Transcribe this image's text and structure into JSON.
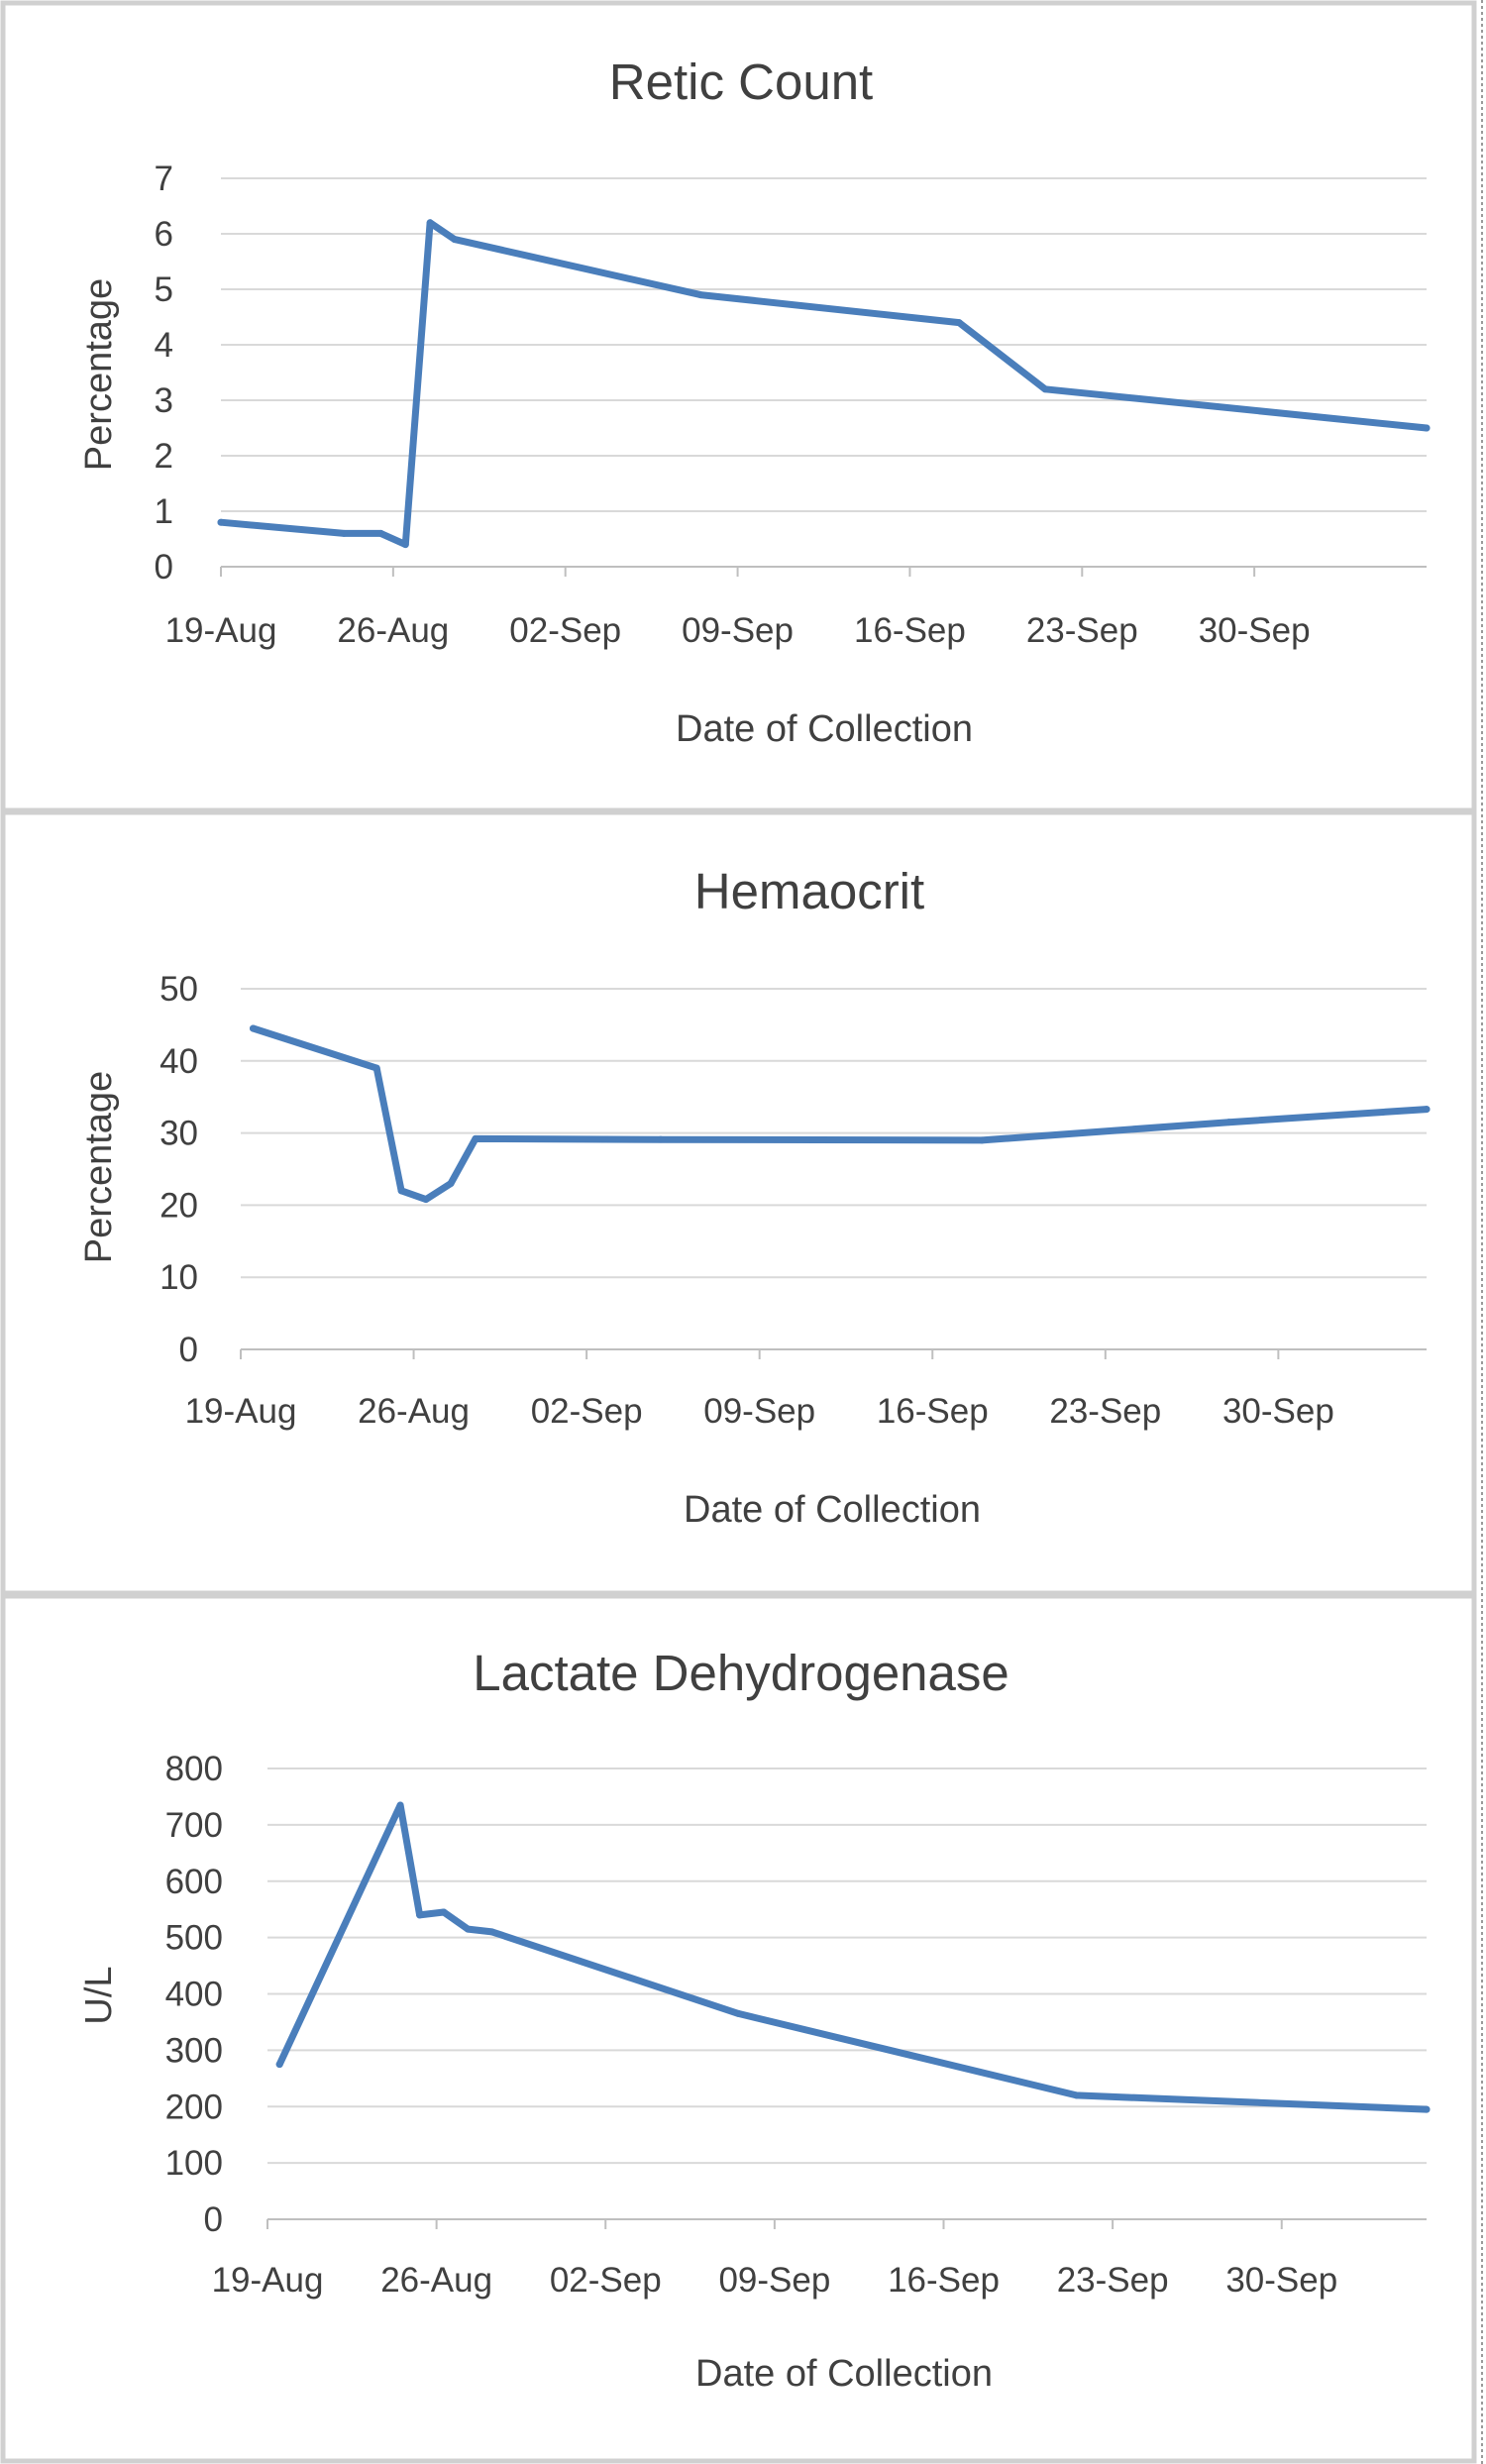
{
  "colors": {
    "series": "#4a7ebb"
  },
  "chart_data": [
    {
      "type": "line",
      "title": "Retic Count",
      "xlabel": "Date of Collection",
      "ylabel": "Percentage",
      "x_ticks": [
        "19-Aug",
        "26-Aug",
        "02-Sep",
        "09-Sep",
        "16-Sep",
        "23-Sep",
        "30-Sep"
      ],
      "y_ticks": [
        "0",
        "1",
        "2",
        "3",
        "4",
        "5",
        "6",
        "7"
      ],
      "ylim": [
        0,
        7
      ],
      "xlim_days_from_19_aug": [
        0,
        49
      ],
      "grid": true,
      "series": [
        {
          "name": "Retic Count",
          "x_days_from_19_aug": [
            0,
            5,
            6.5,
            7.5,
            8.5,
            9.5,
            19.5,
            30,
            33.5,
            49
          ],
          "x": [
            "19-Aug",
            "24-Aug",
            "25-Aug",
            "26-Aug",
            "27-Aug",
            "28-Aug",
            "07-Sep",
            "17-Sep",
            "21-Sep",
            "06-Oct"
          ],
          "values": [
            0.8,
            0.6,
            0.6,
            0.4,
            6.2,
            5.9,
            4.9,
            4.4,
            3.2,
            2.5
          ]
        }
      ]
    },
    {
      "type": "line",
      "title": "Hemaocrit",
      "xlabel": "Date of Collection",
      "ylabel": "Percentage",
      "x_ticks": [
        "19-Aug",
        "26-Aug",
        "02-Sep",
        "09-Sep",
        "16-Sep",
        "23-Sep",
        "30-Sep"
      ],
      "y_ticks": [
        "0",
        "10",
        "20",
        "30",
        "40",
        "50"
      ],
      "ylim": [
        0,
        50
      ],
      "xlim_days_from_19_aug": [
        0,
        48
      ],
      "grid": true,
      "series": [
        {
          "name": "Hemaocrit",
          "x_days_from_19_aug": [
            0.5,
            5.5,
            6.5,
            7.5,
            8.5,
            9.5,
            17,
            30,
            40,
            48
          ],
          "x": [
            "19-Aug",
            "24-Aug",
            "25-Aug",
            "26-Aug",
            "27-Aug",
            "28-Aug",
            "04-Sep",
            "17-Sep",
            "27-Sep",
            "05-Oct"
          ],
          "values": [
            44.5,
            39,
            22,
            20.8,
            23,
            29.2,
            29.1,
            29,
            31.5,
            33.3
          ]
        }
      ]
    },
    {
      "type": "line",
      "title": "Lactate Dehydrogenase",
      "xlabel": "Date of Collection",
      "ylabel": "U/L",
      "x_ticks": [
        "19-Aug",
        "26-Aug",
        "02-Sep",
        "09-Sep",
        "16-Sep",
        "23-Sep",
        "30-Sep"
      ],
      "y_ticks": [
        "0",
        "100",
        "200",
        "300",
        "400",
        "500",
        "600",
        "700",
        "800"
      ],
      "ylim": [
        0,
        800
      ],
      "xlim_days_from_19_aug": [
        0,
        48
      ],
      "grid": true,
      "series": [
        {
          "name": "Lactate Dehydrogenase",
          "x_days_from_19_aug": [
            0.5,
            5.5,
            6.3,
            7.3,
            8.3,
            9.3,
            19.5,
            33.5,
            48
          ],
          "x": [
            "19-Aug",
            "24-Aug",
            "25-Aug",
            "26-Aug",
            "27-Aug",
            "28-Aug",
            "07-Sep",
            "21-Sep",
            "05-Oct"
          ],
          "values": [
            275,
            735,
            540,
            545,
            515,
            510,
            365,
            220,
            195
          ]
        }
      ]
    }
  ]
}
